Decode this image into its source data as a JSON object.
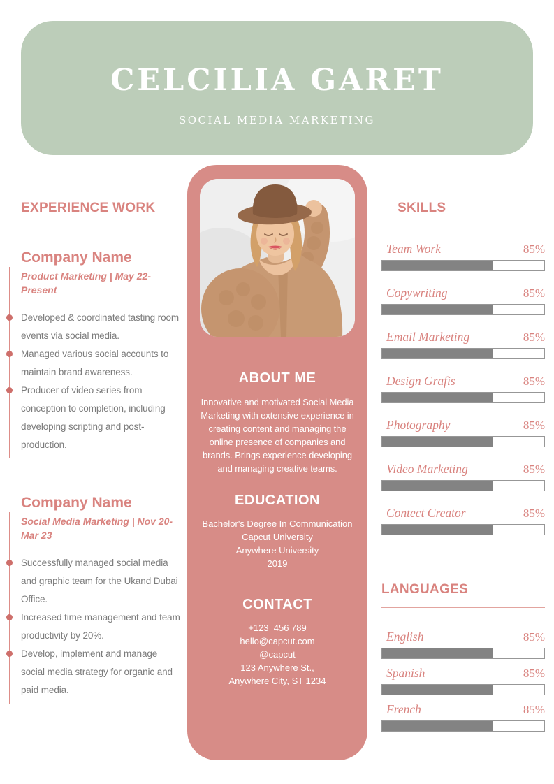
{
  "header": {
    "name": "CELCILIA GARET",
    "subtitle": "SOCIAL MEDIA MARKETING"
  },
  "experience": {
    "heading": "EXPERIENCE WORK",
    "jobs": [
      {
        "company": "Company Name",
        "meta": "Product Marketing | May 22-Present",
        "bullets": [
          "Developed & coordinated tasting room events via social media.",
          "Managed various social accounts to maintain brand awareness.",
          "Producer of video series from conception to completion, including developing scripting and post-production."
        ]
      },
      {
        "company": "Company Name",
        "meta": "Social Media Marketing | Nov 20-Mar 23",
        "bullets": [
          "Successfully managed social media and graphic team for the Ukand Dubai Office.",
          "Increased time management and team productivity by 20%.",
          "Develop, implement and manage social media strategy for organic and paid media."
        ]
      }
    ]
  },
  "profile": {
    "photo_description": "woman in brown hat and knitted tan cardigan",
    "about": {
      "heading": "ABOUT ME",
      "text": "Innovative and motivated Social Media Marketing with extensive experience in creating content and managing the online presence of companies and brands. Brings experience developing and managing creative teams."
    },
    "education": {
      "heading": "EDUCATION",
      "lines": [
        "Bachelor's Degree In Communication",
        "Capcut University",
        "Anywhere University",
        "2019"
      ]
    },
    "contact": {
      "heading": "CONTACT",
      "lines": [
        "+123  456 789",
        "hello@capcut.com",
        "@capcut",
        "123 Anywhere St.,",
        "Anywhere City, ST 1234"
      ]
    }
  },
  "skills": {
    "heading": "SKILLS",
    "items": [
      {
        "label": "Team Work",
        "percent": "85%",
        "fill": 68
      },
      {
        "label": "Copywriting",
        "percent": "85%",
        "fill": 68
      },
      {
        "label": "Email Marketing",
        "percent": "85%",
        "fill": 68
      },
      {
        "label": "Design Grafis",
        "percent": "85%",
        "fill": 68
      },
      {
        "label": "Photography",
        "percent": "85%",
        "fill": 68
      },
      {
        "label": "Video Marketing",
        "percent": "85%",
        "fill": 68
      },
      {
        "label": "Contect Creator",
        "percent": "85%",
        "fill": 68
      }
    ]
  },
  "languages": {
    "heading": "LANGUAGES",
    "items": [
      {
        "label": "English",
        "percent": "85%",
        "fill": 68
      },
      {
        "label": "Spanish",
        "percent": "85%",
        "fill": 68
      },
      {
        "label": "French",
        "percent": "85%",
        "fill": 68
      }
    ]
  },
  "colors": {
    "sage_green": "#bccdb9",
    "panel_pink": "#d78c87",
    "accent_pink": "#d9837f",
    "timeline_dot": "#ce6f6b",
    "bar_fill": "#838383",
    "bar_border": "#979797",
    "body_gray": "#7c7c7c"
  }
}
